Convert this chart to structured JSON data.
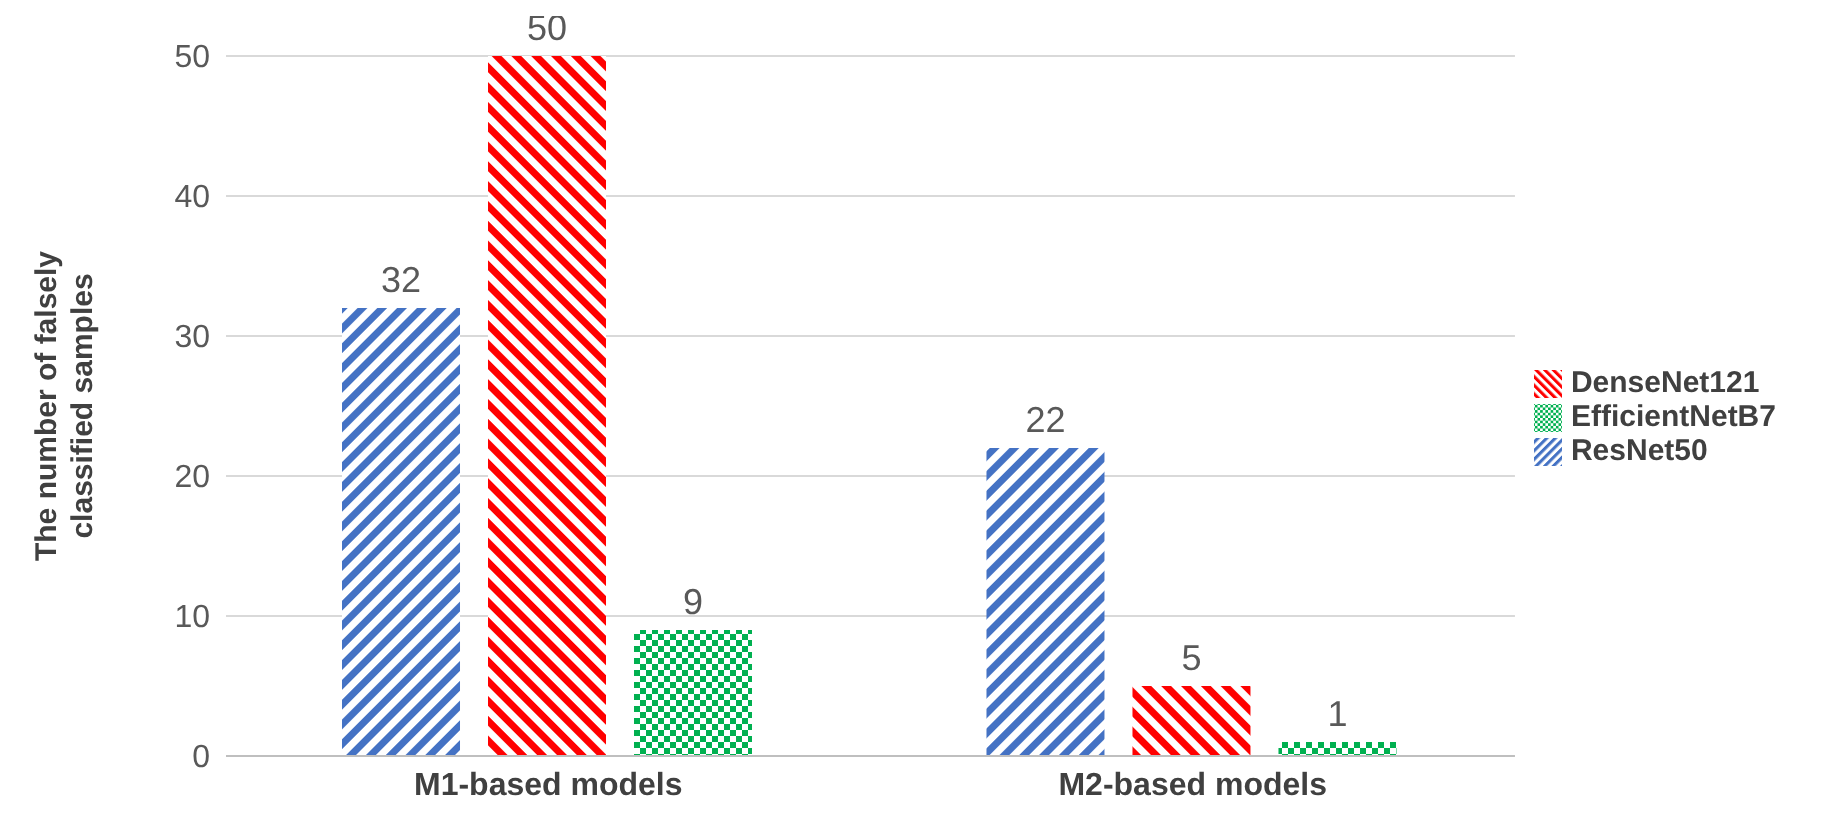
{
  "chart_data": {
    "type": "bar",
    "categories": [
      "M1-based models",
      "M2-based models"
    ],
    "series": [
      {
        "name": "ResNet50",
        "color": "#4472c4",
        "values": [
          32,
          22
        ]
      },
      {
        "name": "DenseNet121",
        "color": "#ff0000",
        "values": [
          50,
          5
        ]
      },
      {
        "name": "EfficientNetB7",
        "color": "#00b050",
        "values": [
          9,
          1
        ]
      }
    ],
    "ylabel": "The number of falsely classified samples",
    "ylim": [
      0,
      50
    ],
    "yticks": [
      0,
      10,
      20,
      30,
      40,
      50
    ],
    "grid": "y",
    "legend": "right",
    "data_labels": true
  }
}
